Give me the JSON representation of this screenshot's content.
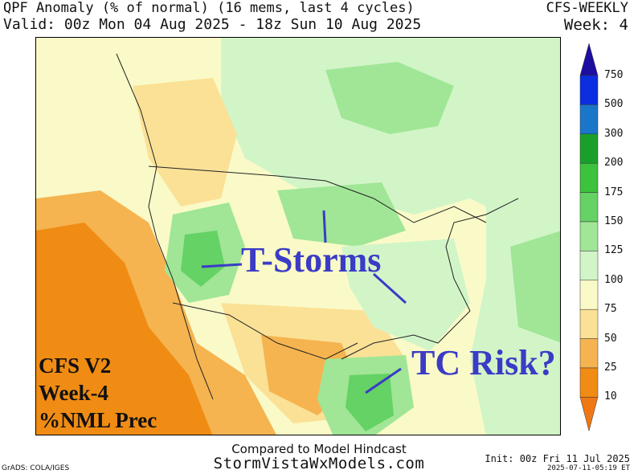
{
  "header": {
    "title": "QPF Anomaly (% of normal) (16 mems, last 4 cycles)",
    "valid": "Valid: 00z Mon 04 Aug 2025 - 18z Sun 10 Aug 2025",
    "model": "CFS-WEEKLY",
    "week": "Week: 4"
  },
  "annotations": {
    "tstorms": "T-Storms",
    "tc_risk": "TC Risk?",
    "cfs_line1": "CFS V2",
    "cfs_line2": "Week-4",
    "cfs_line3": "%NML Prec"
  },
  "legend": {
    "levels": [
      {
        "label": "750",
        "color": "#1c0ea0"
      },
      {
        "label": "500",
        "color": "#0a2ee0"
      },
      {
        "label": "300",
        "color": "#1a76c8"
      },
      {
        "label": "200",
        "color": "#1aa02a"
      },
      {
        "label": "175",
        "color": "#3cc23c"
      },
      {
        "label": "150",
        "color": "#64d264"
      },
      {
        "label": "125",
        "color": "#a0e696"
      },
      {
        "label": "100",
        "color": "#d2f5c8"
      },
      {
        "label": "75",
        "color": "#fafac8"
      },
      {
        "label": "50",
        "color": "#fae196"
      },
      {
        "label": "25",
        "color": "#f5b450"
      },
      {
        "label": "10",
        "color": "#f08c14"
      }
    ],
    "bottom_color": "#f07814"
  },
  "footer": {
    "compared": "Compared to Model Hindcast",
    "site": "StormVistaWxModels.com",
    "grads": "GrADS: COLA/IGES",
    "init": "Init: 00z Fri 11 Jul 2025",
    "stamp": "2025-07-11-05:19 ET"
  },
  "colors": {
    "annotation_blue": "#3b3bc6",
    "arrow_blue": "#3b3bc6",
    "border": "#000000"
  }
}
